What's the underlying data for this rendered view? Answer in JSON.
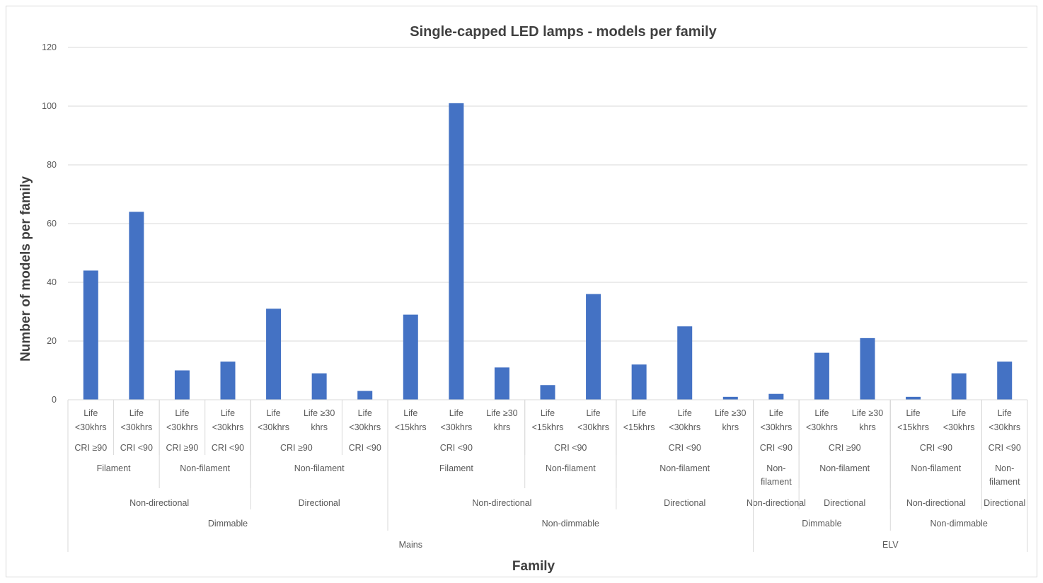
{
  "chart_data": {
    "type": "bar",
    "title": "Single-capped LED lamps - models per family",
    "xlabel": "Family",
    "ylabel": "Number of models per family",
    "ylim": [
      0,
      120
    ],
    "yticks": [
      "0",
      "20",
      "40",
      "60",
      "80",
      "100",
      "120"
    ],
    "grid": true,
    "legend": "none",
    "bar_color": "#4472c4",
    "values": [
      44,
      64,
      10,
      13,
      31,
      9,
      3,
      29,
      101,
      11,
      5,
      36,
      12,
      25,
      1,
      2,
      16,
      21,
      1,
      9,
      13
    ],
    "levels": {
      "life": [
        [
          "Life",
          "<30khrs"
        ],
        [
          "Life",
          "<30khrs"
        ],
        [
          "Life",
          "<30khrs"
        ],
        [
          "Life",
          "<30khrs"
        ],
        [
          "Life",
          "<30khrs"
        ],
        [
          "Life ≥30",
          "khrs"
        ],
        [
          "Life",
          "<30khrs"
        ],
        [
          "Life",
          "<15khrs"
        ],
        [
          "Life",
          "<30khrs"
        ],
        [
          "Life ≥30",
          "khrs"
        ],
        [
          "Life",
          "<15khrs"
        ],
        [
          "Life",
          "<30khrs"
        ],
        [
          "Life",
          "<15khrs"
        ],
        [
          "Life",
          "<30khrs"
        ],
        [
          "Life ≥30",
          "khrs"
        ],
        [
          "Life",
          "<30khrs"
        ],
        [
          "Life",
          "<30khrs"
        ],
        [
          "Life ≥30",
          "khrs"
        ],
        [
          "Life",
          "<15khrs"
        ],
        [
          "Life",
          "<30khrs"
        ],
        [
          "Life",
          "<30khrs"
        ]
      ],
      "cri": [
        {
          "label": "CRI ≥90",
          "start": 0,
          "span": 1
        },
        {
          "label": "CRI <90",
          "start": 1,
          "span": 1
        },
        {
          "label": "CRI ≥90",
          "start": 2,
          "span": 1
        },
        {
          "label": "CRI <90",
          "start": 3,
          "span": 1
        },
        {
          "label": "CRI ≥90",
          "start": 4,
          "span": 2
        },
        {
          "label": "CRI <90",
          "start": 6,
          "span": 1
        },
        {
          "label": "CRI <90",
          "start": 7,
          "span": 3
        },
        {
          "label": "CRI <90",
          "start": 10,
          "span": 2
        },
        {
          "label": "CRI <90",
          "start": 12,
          "span": 3
        },
        {
          "label": "CRI <90",
          "start": 15,
          "span": 1
        },
        {
          "label": "CRI ≥90",
          "start": 16,
          "span": 2
        },
        {
          "label": "CRI <90",
          "start": 18,
          "span": 2
        },
        {
          "label": "CRI <90",
          "start": 20,
          "span": 1
        }
      ],
      "shape": [
        {
          "label": [
            "Filament"
          ],
          "start": 0,
          "span": 2
        },
        {
          "label": [
            "Non-filament"
          ],
          "start": 2,
          "span": 2
        },
        {
          "label": [
            "Non-filament"
          ],
          "start": 4,
          "span": 3
        },
        {
          "label": [
            "Filament"
          ],
          "start": 7,
          "span": 3
        },
        {
          "label": [
            "Non-filament"
          ],
          "start": 10,
          "span": 2
        },
        {
          "label": [
            "Non-filament"
          ],
          "start": 12,
          "span": 3
        },
        {
          "label": [
            "Non-",
            "filament"
          ],
          "start": 15,
          "span": 1
        },
        {
          "label": [
            "Non-filament"
          ],
          "start": 16,
          "span": 2
        },
        {
          "label": [
            "Non-filament"
          ],
          "start": 18,
          "span": 2
        },
        {
          "label": [
            "Non-",
            "filament"
          ],
          "start": 20,
          "span": 1
        }
      ],
      "direction": [
        {
          "label": "Non-directional",
          "start": 0,
          "span": 4
        },
        {
          "label": "Directional",
          "start": 4,
          "span": 3
        },
        {
          "label": "Non-directional",
          "start": 7,
          "span": 5
        },
        {
          "label": "Directional",
          "start": 12,
          "span": 3
        },
        {
          "label": "Non-directional",
          "start": 15,
          "span": 1
        },
        {
          "label": "Directional",
          "start": 16,
          "span": 2
        },
        {
          "label": "Non-directional",
          "start": 18,
          "span": 2
        },
        {
          "label": "Directional",
          "start": 20,
          "span": 1
        }
      ],
      "dimming": [
        {
          "label": "Dimmable",
          "start": 0,
          "span": 7
        },
        {
          "label": "Non-dimmable",
          "start": 7,
          "span": 8
        },
        {
          "label": "Dimmable",
          "start": 15,
          "span": 3
        },
        {
          "label": "Non-dimmable",
          "start": 18,
          "span": 3
        }
      ],
      "supply": [
        {
          "label": "Mains",
          "start": 0,
          "span": 15
        },
        {
          "label": "ELV",
          "start": 15,
          "span": 6
        }
      ]
    }
  }
}
